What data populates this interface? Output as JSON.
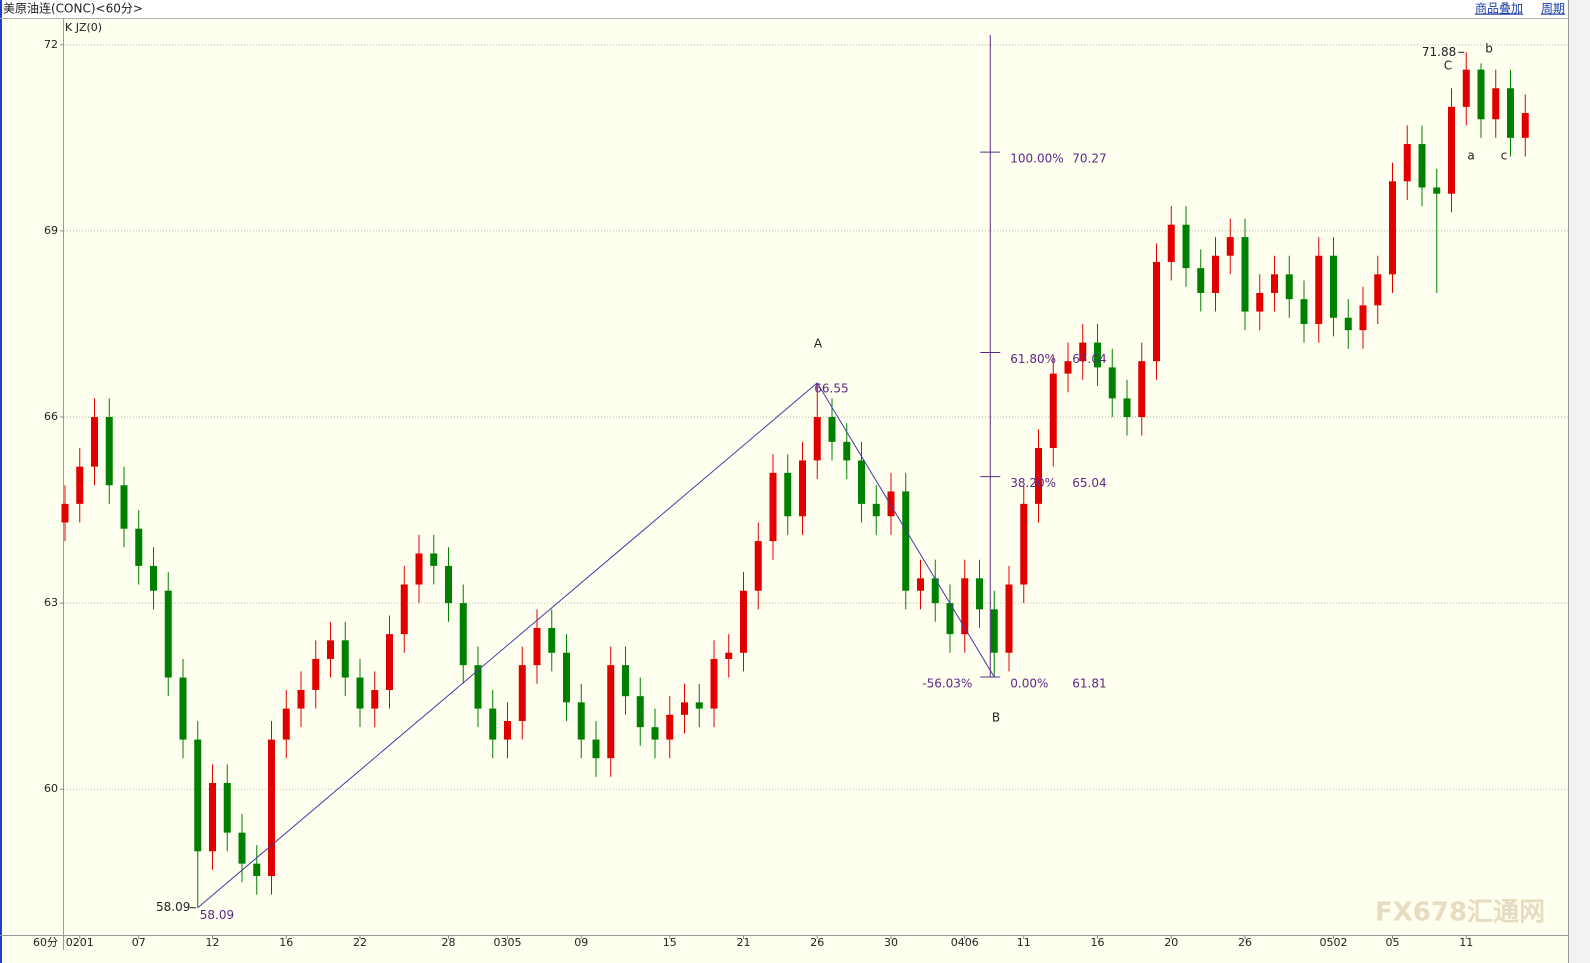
{
  "window": {
    "title": "美原油连(CONC)<60分>",
    "indicator": "K  JZ(0)",
    "buttons": [
      "商品叠加",
      "周期"
    ],
    "period_label": "60分",
    "watermark": "FX678汇通网"
  },
  "chart_data": {
    "type": "candlestick",
    "categories": [
      null,
      "0201",
      null,
      null,
      null,
      "07",
      null,
      null,
      null,
      null,
      "12",
      null,
      null,
      null,
      null,
      "16",
      null,
      null,
      null,
      null,
      "22",
      null,
      null,
      null,
      null,
      null,
      "28",
      null,
      null,
      null,
      "0305",
      null,
      null,
      null,
      null,
      "09",
      null,
      null,
      null,
      null,
      null,
      "15",
      null,
      null,
      null,
      null,
      "21",
      null,
      null,
      null,
      null,
      "26",
      null,
      null,
      null,
      null,
      "30",
      null,
      null,
      null,
      null,
      "0406",
      null,
      null,
      null,
      "11",
      null,
      null,
      null,
      null,
      "16",
      null,
      null,
      null,
      null,
      "20",
      null,
      null,
      null,
      null,
      "26",
      null,
      null,
      null,
      null,
      null,
      "0502",
      null,
      null,
      null,
      "05",
      null,
      null,
      null,
      null,
      "11",
      null,
      null,
      null,
      null
    ],
    "open": [
      64.3,
      64.6,
      65.2,
      66.0,
      64.9,
      64.2,
      63.6,
      63.2,
      61.8,
      60.8,
      59.0,
      60.1,
      59.3,
      58.8,
      58.6,
      60.8,
      61.3,
      61.6,
      62.1,
      62.4,
      61.8,
      61.3,
      61.6,
      62.5,
      63.3,
      63.8,
      63.6,
      63.0,
      62.0,
      61.3,
      60.8,
      61.1,
      62.0,
      62.6,
      62.2,
      61.4,
      60.8,
      60.5,
      62.0,
      61.5,
      61.0,
      60.8,
      61.2,
      61.4,
      61.3,
      62.1,
      62.2,
      63.2,
      64.0,
      65.1,
      64.4,
      65.3,
      66.0,
      65.6,
      65.3,
      64.6,
      64.4,
      64.8,
      63.2,
      63.4,
      63.0,
      62.5,
      63.4,
      62.9,
      62.2,
      63.3,
      64.6,
      65.5,
      66.7,
      66.9,
      67.2,
      66.8,
      66.3,
      66.0,
      66.9,
      68.5,
      69.1,
      68.4,
      68.0,
      68.6,
      68.9,
      67.7,
      68.0,
      68.3,
      67.9,
      67.5,
      68.6,
      67.6,
      67.4,
      67.8,
      68.3,
      69.8,
      70.4,
      69.7,
      69.6,
      71.0,
      71.6,
      70.8,
      71.3,
      70.5
    ],
    "high": [
      64.9,
      65.5,
      66.3,
      66.3,
      65.2,
      64.5,
      63.9,
      63.5,
      62.1,
      61.1,
      60.4,
      60.4,
      59.6,
      59.1,
      61.1,
      61.6,
      61.9,
      62.4,
      62.7,
      62.7,
      62.1,
      61.9,
      62.8,
      63.6,
      64.1,
      64.1,
      63.9,
      63.3,
      62.3,
      61.6,
      61.4,
      62.3,
      62.9,
      62.9,
      62.5,
      61.7,
      61.1,
      62.3,
      62.3,
      61.8,
      61.3,
      61.5,
      61.7,
      61.7,
      62.4,
      62.5,
      63.5,
      64.3,
      65.4,
      65.4,
      65.6,
      66.55,
      66.3,
      65.9,
      65.6,
      64.9,
      65.1,
      65.1,
      63.7,
      63.7,
      63.3,
      63.7,
      63.7,
      63.2,
      63.6,
      64.9,
      65.8,
      67.0,
      67.2,
      67.5,
      67.5,
      67.1,
      66.6,
      67.2,
      68.8,
      69.4,
      69.4,
      68.7,
      68.9,
      69.2,
      69.2,
      68.3,
      68.6,
      68.6,
      68.2,
      68.9,
      68.9,
      67.9,
      68.1,
      68.6,
      70.1,
      70.7,
      70.7,
      70.0,
      71.3,
      71.88,
      71.7,
      71.6,
      71.6,
      71.2
    ],
    "low": [
      64.0,
      64.3,
      64.9,
      64.6,
      63.9,
      63.3,
      62.9,
      61.5,
      60.5,
      58.09,
      58.7,
      59.0,
      58.5,
      58.3,
      58.3,
      60.5,
      61.0,
      61.3,
      61.8,
      61.5,
      61.0,
      61.0,
      61.3,
      62.2,
      63.0,
      63.3,
      62.7,
      61.7,
      61.0,
      60.5,
      60.5,
      60.8,
      61.7,
      61.9,
      61.1,
      60.5,
      60.2,
      60.2,
      61.2,
      60.7,
      60.5,
      60.5,
      60.9,
      61.0,
      61.0,
      61.8,
      61.9,
      62.9,
      63.7,
      64.1,
      64.1,
      65.0,
      65.3,
      65.0,
      64.3,
      64.1,
      64.1,
      62.9,
      62.9,
      62.7,
      62.2,
      62.2,
      62.6,
      61.81,
      61.9,
      63.0,
      64.3,
      65.2,
      66.4,
      66.6,
      66.5,
      66.0,
      65.7,
      65.7,
      66.6,
      68.2,
      68.1,
      67.7,
      67.7,
      68.3,
      67.4,
      67.4,
      67.7,
      67.6,
      67.2,
      67.2,
      67.3,
      67.1,
      67.1,
      67.5,
      68.0,
      69.5,
      69.4,
      68.0,
      69.3,
      70.7,
      70.5,
      70.5,
      70.2,
      70.2
    ],
    "close": [
      64.6,
      65.2,
      66.0,
      64.9,
      64.2,
      63.6,
      63.2,
      61.8,
      60.8,
      59.0,
      60.1,
      59.3,
      58.8,
      58.6,
      60.8,
      61.3,
      61.6,
      62.1,
      62.4,
      61.8,
      61.3,
      61.6,
      62.5,
      63.3,
      63.8,
      63.6,
      63.0,
      62.0,
      61.3,
      60.8,
      61.1,
      62.0,
      62.6,
      62.2,
      61.4,
      60.8,
      60.5,
      62.0,
      61.5,
      61.0,
      60.8,
      61.2,
      61.4,
      61.3,
      62.1,
      62.2,
      63.2,
      64.0,
      65.1,
      64.4,
      65.3,
      66.0,
      65.6,
      65.3,
      64.6,
      64.4,
      64.8,
      63.2,
      63.4,
      63.0,
      62.5,
      63.4,
      62.9,
      62.2,
      63.3,
      64.6,
      65.5,
      66.7,
      66.9,
      67.2,
      66.8,
      66.3,
      66.0,
      66.9,
      68.5,
      69.1,
      68.4,
      68.0,
      68.6,
      68.9,
      67.7,
      68.0,
      68.3,
      67.9,
      67.5,
      68.6,
      67.6,
      67.4,
      67.8,
      68.3,
      69.8,
      70.4,
      69.7,
      69.6,
      71.0,
      71.6,
      70.8,
      71.3,
      70.5,
      70.9
    ],
    "up_color": "#e00000",
    "down_color": "#008000",
    "ylim": [
      57.65,
      72.4
    ],
    "yticks": [
      60,
      63,
      66,
      69,
      72
    ],
    "grid": true,
    "fibonacci": {
      "color": "#5b2a86",
      "levels": [
        {
          "label": "100.00%",
          "value": 70.27
        },
        {
          "label": "61.80%",
          "value": 67.04
        },
        {
          "label": "38.20%",
          "value": 65.04
        },
        {
          "label": "0.00%",
          "value": 61.81
        }
      ],
      "note": "-56.03%"
    },
    "wave_labels": [
      "A",
      "B",
      "C",
      "a",
      "b",
      "c"
    ]
  }
}
